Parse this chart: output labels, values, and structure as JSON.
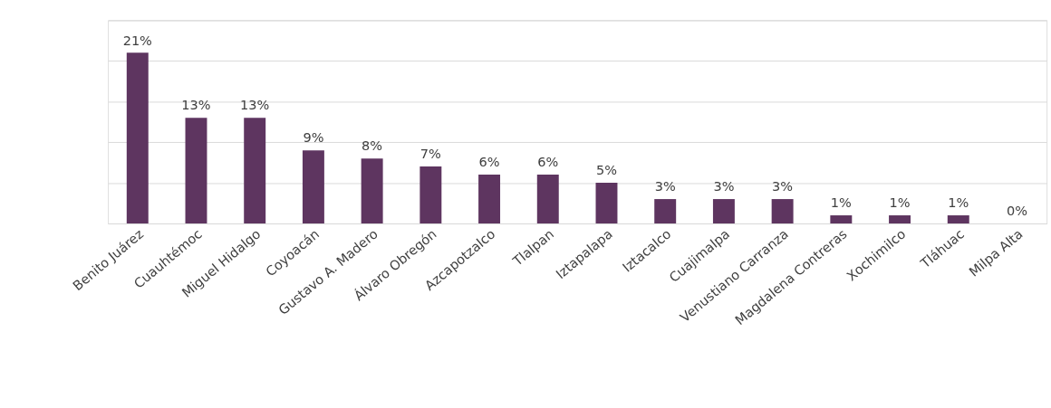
{
  "chart_data": {
    "type": "bar",
    "categories": [
      "Benito Juárez",
      "Cuauhtémoc",
      "Miguel Hidalgo",
      "Coyoacán",
      "Gustavo A. Madero",
      "Álvaro Obregón",
      "Azcapotzalco",
      "Tlalpan",
      "Iztapalapa",
      "Iztacalco",
      "Cuajimalpa",
      "Venustiano Carranza",
      "Magdalena Contreras",
      "Xochimilco",
      "Tláhuac",
      "Milpa Alta"
    ],
    "values": [
      21,
      13,
      13,
      9,
      8,
      7,
      6,
      6,
      5,
      3,
      3,
      3,
      1,
      1,
      1,
      0
    ],
    "value_labels": [
      "21%",
      "13%",
      "13%",
      "9%",
      "8%",
      "7%",
      "6%",
      "6%",
      "5%",
      "3%",
      "3%",
      "3%",
      "1%",
      "1%",
      "1%",
      "0%"
    ],
    "color": "#5e3560",
    "ylim": [
      0,
      25
    ],
    "yticks": [
      {
        "value": 0,
        "label": null
      },
      {
        "value": 5,
        "label": null
      },
      {
        "value": 10,
        "label": null
      },
      {
        "value": 15,
        "label": null
      },
      {
        "value": 20,
        "label": null
      },
      {
        "value": 25,
        "label": null
      }
    ],
    "tick_labels": "x",
    "grid": "y"
  }
}
